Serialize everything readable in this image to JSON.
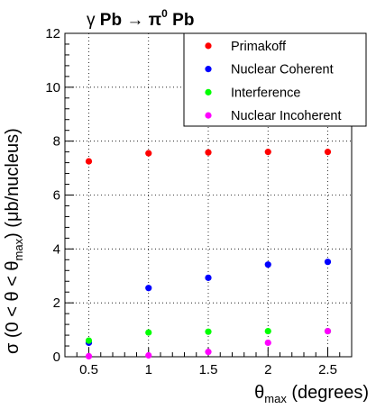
{
  "chart_data": {
    "type": "scatter",
    "title": {
      "gamma": "γ",
      "pb1": "Pb",
      "arrow": "→",
      "pi": "π",
      "zero": "0",
      "pb2": "Pb"
    },
    "xlabel": {
      "theta": "θ",
      "sub": "max",
      "rest": "(degrees)"
    },
    "ylabel": {
      "prefix": "σ (0 < θ < θ",
      "sub": "max",
      "suffix": ") (μb/nucleus)"
    },
    "xlim": [
      0.3,
      2.7
    ],
    "ylim": [
      0,
      12
    ],
    "x_ticks": [
      "0.5",
      "1",
      "1.5",
      "2",
      "2.5"
    ],
    "y_ticks": [
      "0",
      "2",
      "4",
      "6",
      "8",
      "10",
      "12"
    ],
    "grid": true,
    "legend_position": "top-right",
    "x": [
      0.5,
      1.0,
      1.5,
      2.0,
      2.5
    ],
    "series": [
      {
        "name": "Primakoff",
        "color": "#ff0000",
        "values": [
          7.25,
          7.55,
          7.58,
          7.6,
          7.6
        ]
      },
      {
        "name": "Nuclear Coherent",
        "color": "#0000ff",
        "values": [
          0.52,
          2.55,
          2.93,
          3.42,
          3.52
        ]
      },
      {
        "name": "Interference",
        "color": "#00ff00",
        "values": [
          0.6,
          0.9,
          0.93,
          0.95,
          0.95
        ]
      },
      {
        "name": "Nuclear Incoherent",
        "color": "#ff00ff",
        "values": [
          0.02,
          0.05,
          0.18,
          0.52,
          0.95
        ]
      }
    ]
  }
}
